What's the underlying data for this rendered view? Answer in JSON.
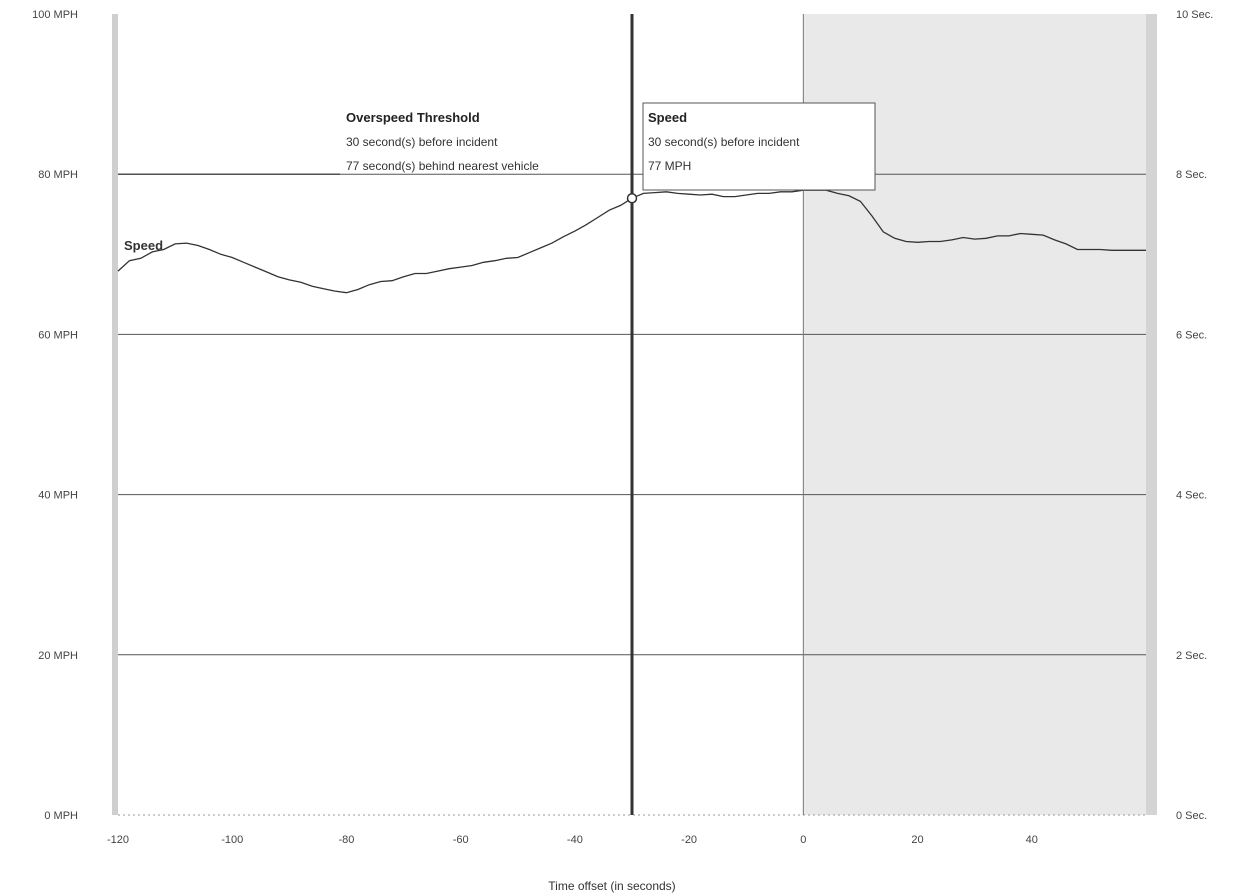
{
  "chart_data": {
    "type": "line",
    "xlabel": "Time offset (in seconds)",
    "x_ticks": [
      "-120",
      "-100",
      "-80",
      "-60",
      "-40",
      "-20",
      "0",
      "20",
      "40"
    ],
    "x_tick_values": [
      -120,
      -100,
      -80,
      -60,
      -40,
      -20,
      0,
      20,
      40
    ],
    "xlim": [
      -120,
      60
    ],
    "ylim": [
      0,
      100
    ],
    "y_ticks_left": [
      "0 MPH",
      "20 MPH",
      "40 MPH",
      "60 MPH",
      "80 MPH",
      "100 MPH"
    ],
    "y_tick_values_left": [
      0,
      20,
      40,
      60,
      80,
      100
    ],
    "y_ticks_right": [
      "0 Sec.",
      "2 Sec.",
      "4 Sec.",
      "6 Sec.",
      "8 Sec.",
      "10 Sec."
    ],
    "grid": true,
    "threshold_mph": 80,
    "shaded_region_x": [
      0,
      60
    ],
    "incident_marker_x": 0,
    "cursor_x": -30,
    "series": [
      {
        "name": "Speed",
        "color": "#333333",
        "x": [
          -120,
          -118,
          -116,
          -114,
          -112,
          -110,
          -108,
          -106,
          -104,
          -102,
          -100,
          -98,
          -96,
          -94,
          -92,
          -90,
          -88,
          -86,
          -84,
          -82,
          -80,
          -78,
          -76,
          -74,
          -72,
          -70,
          -68,
          -66,
          -64,
          -62,
          -60,
          -58,
          -56,
          -54,
          -52,
          -50,
          -48,
          -46,
          -44,
          -42,
          -40,
          -38,
          -36,
          -34,
          -32,
          -30,
          -28,
          -26,
          -24,
          -22,
          -20,
          -18,
          -16,
          -14,
          -12,
          -10,
          -8,
          -6,
          -4,
          -2,
          0,
          2,
          4,
          6,
          8,
          10,
          12,
          14,
          16,
          18,
          20,
          22,
          24,
          26,
          28,
          30,
          32,
          34,
          36,
          38,
          40,
          42,
          44,
          46,
          48,
          50,
          52,
          54,
          56,
          58,
          60
        ],
        "y": [
          67.9,
          69.2,
          69.5,
          70.3,
          70.6,
          71.3,
          71.4,
          71.1,
          70.6,
          70.0,
          69.6,
          69.0,
          68.4,
          67.8,
          67.2,
          66.8,
          66.5,
          66.0,
          65.7,
          65.4,
          65.2,
          65.6,
          66.2,
          66.6,
          66.7,
          67.2,
          67.6,
          67.6,
          67.9,
          68.2,
          68.4,
          68.6,
          69.0,
          69.2,
          69.5,
          69.6,
          70.2,
          70.8,
          71.4,
          72.2,
          72.9,
          73.7,
          74.6,
          75.5,
          76.1,
          77.0,
          77.6,
          77.7,
          77.8,
          77.6,
          77.5,
          77.4,
          77.5,
          77.2,
          77.2,
          77.4,
          77.6,
          77.6,
          77.8,
          77.8,
          78.0,
          78.0,
          78.0,
          77.6,
          77.3,
          76.6,
          74.8,
          72.8,
          72.0,
          71.6,
          71.5,
          71.6,
          71.6,
          71.8,
          72.1,
          71.9,
          72.0,
          72.3,
          72.3,
          72.6,
          72.5,
          72.4,
          71.8,
          71.3,
          70.6,
          70.6,
          70.6,
          70.5,
          70.5,
          70.5,
          70.5
        ]
      }
    ],
    "annotations": {
      "threshold_title": "Overspeed Threshold",
      "threshold_line1": "30 second(s) before incident",
      "threshold_line2": "77 second(s) behind nearest vehicle",
      "tooltip_title": "Speed",
      "tooltip_line1": "30 second(s) before incident",
      "tooltip_line2": "77 MPH"
    }
  }
}
